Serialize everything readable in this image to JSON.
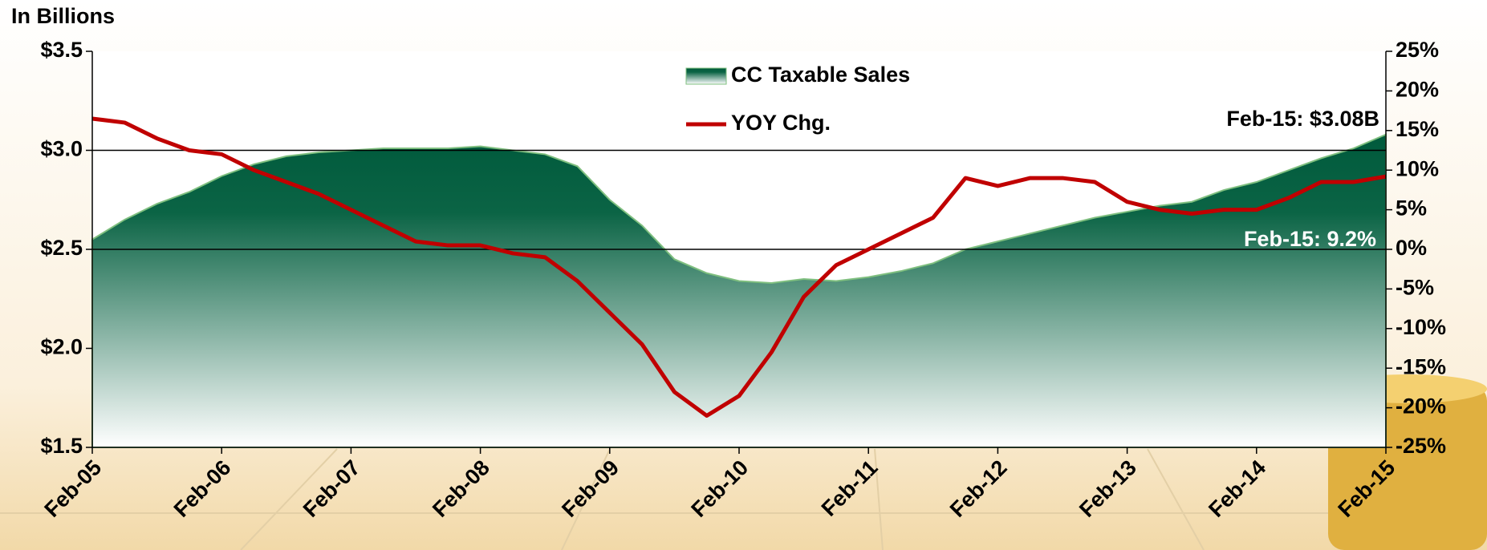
{
  "chart_data": {
    "type": "area_line",
    "y_axis_label": "In Billions",
    "categories": [
      "Feb-05",
      null,
      null,
      null,
      "Feb-06",
      null,
      null,
      null,
      "Feb-07",
      null,
      null,
      null,
      "Feb-08",
      null,
      null,
      null,
      "Feb-09",
      null,
      null,
      null,
      "Feb-10",
      null,
      null,
      null,
      "Feb-11",
      null,
      null,
      null,
      "Feb-12",
      null,
      null,
      null,
      "Feb-13",
      null,
      null,
      null,
      "Feb-14",
      null,
      null,
      null,
      "Feb-15"
    ],
    "series": [
      {
        "name": "CC Taxable Sales",
        "kind": "area",
        "axis": "y",
        "color": "#005a3c",
        "values": [
          2.55,
          2.65,
          2.73,
          2.79,
          2.87,
          2.93,
          2.97,
          2.99,
          3.0,
          3.01,
          3.01,
          3.01,
          3.02,
          3.0,
          2.98,
          2.92,
          2.75,
          2.62,
          2.45,
          2.38,
          2.34,
          2.33,
          2.35,
          2.34,
          2.36,
          2.39,
          2.43,
          2.5,
          2.54,
          2.58,
          2.62,
          2.66,
          2.69,
          2.72,
          2.74,
          2.8,
          2.84,
          2.9,
          2.96,
          3.01,
          3.08
        ]
      },
      {
        "name": "YOY Chg.",
        "kind": "line",
        "axis": "y2",
        "color": "#c00000",
        "values": [
          16.5,
          16.0,
          14,
          12.5,
          12,
          10,
          8.5,
          7,
          5,
          3,
          1,
          0.5,
          0.5,
          -0.5,
          -1,
          -4,
          -8,
          -12,
          -18,
          -21,
          -18.5,
          -13,
          -6,
          -2,
          0,
          2,
          4,
          9,
          8,
          9,
          9,
          8.5,
          6,
          5,
          4.5,
          5,
          5,
          6.5,
          8.5,
          8.5,
          9.2
        ]
      }
    ],
    "annotations": [
      "Feb-15: $3.08B",
      "Feb-15: 9.2%"
    ],
    "ylim": [
      1.5,
      3.5
    ],
    "yticks": [
      {
        "value": 1.5,
        "label": "$1.5"
      },
      {
        "value": 2.0,
        "label": "$2.0"
      },
      {
        "value": 2.5,
        "label": "$2.5"
      },
      {
        "value": 3.0,
        "label": "$3.0"
      },
      {
        "value": 3.5,
        "label": "$3.5"
      }
    ],
    "grid_values": [
      2.5,
      3.0
    ],
    "y2lim": [
      -25,
      25
    ],
    "y2ticks": [
      {
        "value": -25,
        "label": "-25%"
      },
      {
        "value": -20,
        "label": "-20%"
      },
      {
        "value": -15,
        "label": "-15%"
      },
      {
        "value": -10,
        "label": "-10%"
      },
      {
        "value": -5,
        "label": "-5%"
      },
      {
        "value": 0,
        "label": "0%"
      },
      {
        "value": 5,
        "label": "5%"
      },
      {
        "value": 10,
        "label": "10%"
      },
      {
        "value": 15,
        "label": "15%"
      },
      {
        "value": 20,
        "label": "20%"
      },
      {
        "value": 25,
        "label": "25%"
      }
    ]
  }
}
